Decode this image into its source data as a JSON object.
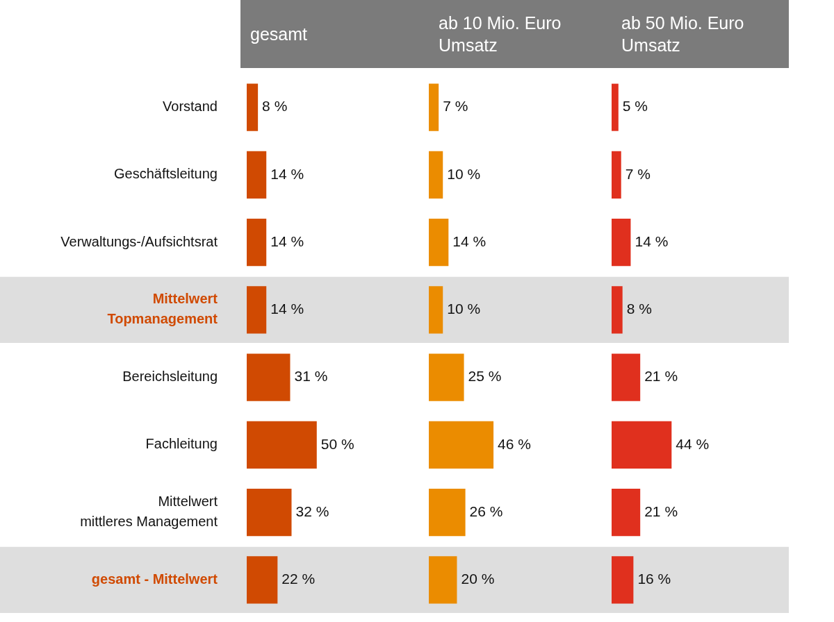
{
  "chart_data": [
    {
      "type": "bar",
      "orientation": "horizontal",
      "title": "gesamt",
      "categories": [
        "Vorstand",
        "Geschäftsleitung",
        "Verwaltungs-/Aufsichtsrat",
        "Mittelwert\nTopmanagement",
        "Bereichsleitung",
        "Fachleitung",
        "Mittelwert\nmittleres Management",
        "gesamt - Mittelwert"
      ],
      "series": [
        {
          "color": "#d04a02",
          "values": [
            8,
            14,
            14,
            14,
            31,
            50,
            32,
            22
          ],
          "value_labels": [
            "8 %",
            "14 %",
            "14 %",
            "14 %",
            "31 %",
            "50 %",
            "32 %",
            "22 %"
          ]
        }
      ],
      "bands": [
        {
          "axis": "y",
          "from": "Mittelwert\nTopmanagement",
          "to": "Mittelwert\nTopmanagement",
          "color": "#dedede"
        },
        {
          "axis": "y",
          "from": "gesamt - Mittelwert",
          "to": "gesamt - Mittelwert",
          "color": "#dedede"
        }
      ],
      "grid": false,
      "legend": false
    },
    {
      "type": "bar",
      "orientation": "horizontal",
      "title": "ab 10 Mio. Euro Umsatz",
      "categories": [
        "Vorstand",
        "Geschäftsleitung",
        "Verwaltungs-/Aufsichtsrat",
        "Mittelwert\nTopmanagement",
        "Bereichsleitung",
        "Fachleitung",
        "Mittelwert\nmittleres Management",
        "gesamt - Mittelwert"
      ],
      "series": [
        {
          "color": "#eb8c00",
          "values": [
            7,
            10,
            14,
            10,
            25,
            46,
            26,
            20
          ],
          "value_labels": [
            "7 %",
            "10 %",
            "14 %",
            "10 %",
            "25 %",
            "46 %",
            "26 %",
            "20 %"
          ]
        }
      ],
      "bands": [
        {
          "axis": "y",
          "from": "Mittelwert\nTopmanagement",
          "to": "Mittelwert\nTopmanagement",
          "color": "#dedede"
        },
        {
          "axis": "y",
          "from": "gesamt - Mittelwert",
          "to": "gesamt - Mittelwert",
          "color": "#dedede"
        }
      ],
      "grid": false,
      "legend": false,
      "tick_labels": false
    },
    {
      "type": "bar",
      "orientation": "horizontal",
      "title": "ab 50 Mio. Euro Umsatz",
      "categories": [
        "Vorstand",
        "Geschäftsleitung",
        "Verwaltungs-/Aufsichtsrat",
        "Mittelwert\nTopmanagement",
        "Bereichsleitung",
        "Fachleitung",
        "Mittelwert\nmittleres Management",
        "gesamt - Mittelwert"
      ],
      "series": [
        {
          "color": "#e0301e",
          "values": [
            5,
            7,
            14,
            8,
            21,
            44,
            21,
            16
          ],
          "value_labels": [
            "5 %",
            "7 %",
            "14 %",
            "8 %",
            "21 %",
            "44 %",
            "21 %",
            "16 %"
          ]
        }
      ],
      "bands": [
        {
          "axis": "y",
          "from": "Mittelwert\nTopmanagement",
          "to": "Mittelwert\nTopmanagement",
          "color": "#dedede"
        },
        {
          "axis": "y",
          "from": "gesamt - Mittelwert",
          "to": "gesamt - Mittelwert",
          "color": "#dedede"
        }
      ],
      "grid": false,
      "legend": false,
      "tick_labels": false
    }
  ]
}
